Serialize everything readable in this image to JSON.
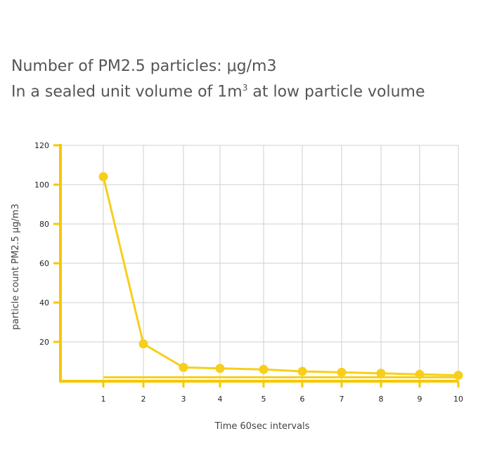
{
  "title": {
    "line1": "Number of PM2.5 particles: μg/m3",
    "line2_pre": "In a sealed unit volume of 1m",
    "line2_sup": "3",
    "line2_post": " at low particle volume"
  },
  "colors": {
    "accent": "#f7cf1a",
    "axis": "#f5c800",
    "grid": "#cfcfcf"
  },
  "chart_data": {
    "type": "line",
    "x": [
      1,
      2,
      3,
      4,
      5,
      6,
      7,
      8,
      9,
      10
    ],
    "xticks": [
      "1",
      "2",
      "3",
      "4",
      "5",
      "6",
      "7",
      "8",
      "9",
      "10"
    ],
    "x_positions": [
      1,
      2,
      3,
      4,
      5,
      6,
      7,
      8,
      9,
      10
    ],
    "series": [
      {
        "values": [
          104,
          19,
          7,
          6.5,
          6,
          5,
          4.5,
          4,
          3.5,
          3
        ]
      }
    ],
    "baseline": {
      "values": [
        2,
        2,
        2,
        2,
        2,
        2,
        2,
        2,
        2,
        2
      ]
    },
    "yticks": [
      20,
      40,
      60,
      80,
      100,
      120
    ],
    "ylim": [
      0,
      120
    ],
    "xlabel": "Time 60sec intervals",
    "ylabel": "particle count PM2.5  μg/m3",
    "grid": true
  }
}
